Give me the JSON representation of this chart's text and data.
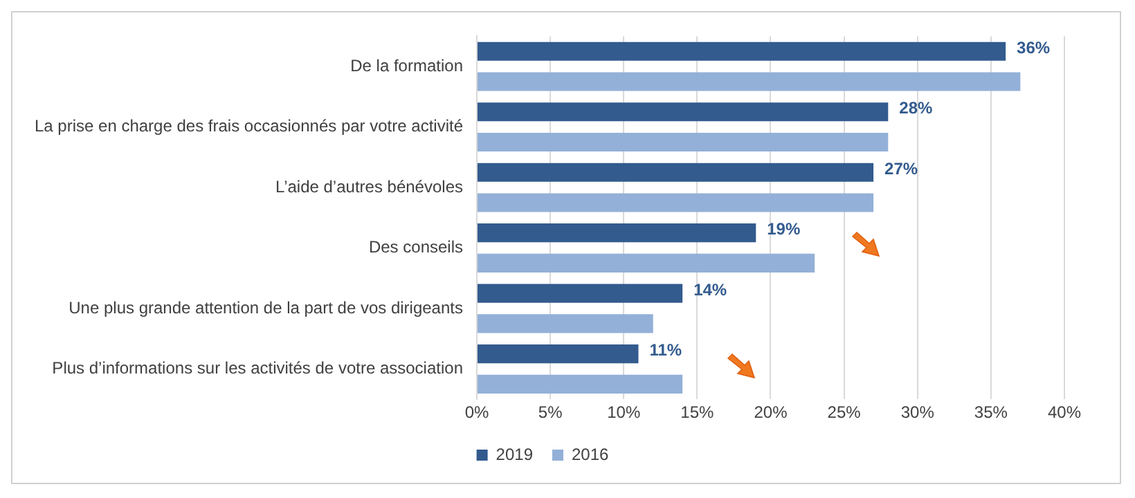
{
  "chart_data": {
    "type": "bar",
    "orientation": "horizontal",
    "categories": [
      "De la formation",
      "La prise en charge des frais occasionnés par votre activité",
      "L’aide d’autres bénévoles",
      "Des conseils",
      "Une plus grande attention de la part de vos dirigeants",
      "Plus d’informations sur les activités de votre association"
    ],
    "series": [
      {
        "name": "2019",
        "color": "#335b8e",
        "values": [
          36,
          28,
          27,
          19,
          14,
          11
        ],
        "value_labels": [
          "36%",
          "28%",
          "27%",
          "19%",
          "14%",
          "11%"
        ]
      },
      {
        "name": "2016",
        "color": "#93b0d8",
        "values": [
          37,
          28,
          27,
          23,
          12,
          14
        ]
      }
    ],
    "xlim": [
      0,
      40
    ],
    "xticks": [
      {
        "value": 0,
        "label": "0%"
      },
      {
        "value": 5,
        "label": "5%"
      },
      {
        "value": 10,
        "label": "10%"
      },
      {
        "value": 15,
        "label": "15%"
      },
      {
        "value": 20,
        "label": "20%"
      },
      {
        "value": 25,
        "label": "25%"
      },
      {
        "value": 30,
        "label": "30%"
      },
      {
        "value": 35,
        "label": "35%"
      },
      {
        "value": 40,
        "label": "40%"
      }
    ],
    "grid": "x",
    "legend": "bottom"
  }
}
